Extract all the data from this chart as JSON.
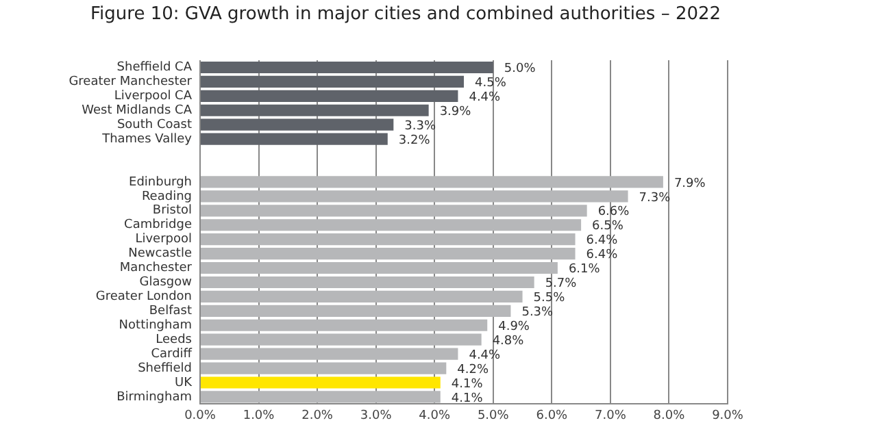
{
  "chart_data": {
    "type": "bar",
    "orientation": "horizontal",
    "title": "Figure 10: GVA growth in major cities and combined authorities – 2022",
    "categories": [
      "Sheffield CA",
      "Greater Manchester",
      "Liverpool CA",
      "West Midlands CA",
      "South Coast",
      "Thames Valley",
      null,
      null,
      "Edinburgh",
      "Reading",
      "Bristol",
      "Cambridge",
      "Liverpool",
      "Newcastle",
      "Manchester",
      "Glasgow",
      "Greater London",
      "Belfast",
      "Nottingham",
      "Leeds",
      "Cardiff",
      "Sheffield",
      "UK",
      "Birmingham"
    ],
    "values": [
      5.0,
      4.5,
      4.4,
      3.9,
      3.3,
      3.2,
      null,
      null,
      7.9,
      7.3,
      6.6,
      6.5,
      6.4,
      6.4,
      6.1,
      5.7,
      5.5,
      5.3,
      4.9,
      4.8,
      4.4,
      4.2,
      4.1,
      4.1
    ],
    "value_labels": [
      "5.0%",
      "4.5%",
      "4.4%",
      "3.9%",
      "3.3%",
      "3.2%",
      null,
      null,
      "7.9%",
      "7.3%",
      "6.6%",
      "6.5%",
      "6.4%",
      "6.4%",
      "6.1%",
      "5.7%",
      "5.5%",
      "5.3%",
      "4.9%",
      "4.8%",
      "4.4%",
      "4.2%",
      "4.1%",
      "4.1%"
    ],
    "colors": [
      "#5f636a",
      "#5f636a",
      "#5f636a",
      "#5f636a",
      "#5f636a",
      "#5f636a",
      null,
      null,
      "#b6b7b9",
      "#b6b7b9",
      "#b6b7b9",
      "#b6b7b9",
      "#b6b7b9",
      "#b6b7b9",
      "#b6b7b9",
      "#b6b7b9",
      "#b6b7b9",
      "#b6b7b9",
      "#b6b7b9",
      "#b6b7b9",
      "#b6b7b9",
      "#b6b7b9",
      "#ffe600",
      "#b6b7b9"
    ],
    "xlim": [
      0,
      9
    ],
    "xticks": [
      {
        "value": 0,
        "label": "0.0%"
      },
      {
        "value": 1,
        "label": "1.0%"
      },
      {
        "value": 2,
        "label": "2.0%"
      },
      {
        "value": 3,
        "label": "3.0%"
      },
      {
        "value": 4,
        "label": "4.0%"
      },
      {
        "value": 5,
        "label": "5.0%"
      },
      {
        "value": 6,
        "label": "6.0%"
      },
      {
        "value": 7,
        "label": "7.0%"
      },
      {
        "value": 8,
        "label": "8.0%"
      },
      {
        "value": 9,
        "label": "9.0%"
      }
    ],
    "grid": "x",
    "legend": false
  }
}
